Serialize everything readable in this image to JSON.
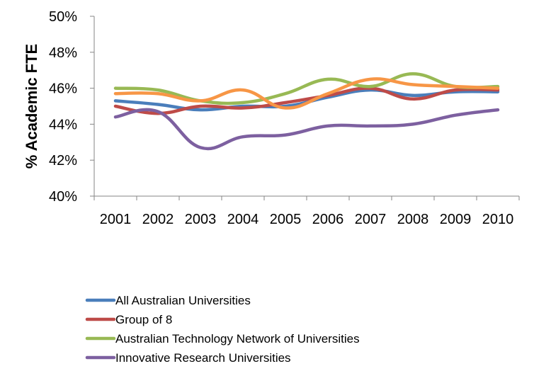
{
  "chart_data": {
    "type": "line",
    "title": "",
    "xlabel": "",
    "ylabel": "% Academic FTE",
    "x": [
      "2001",
      "2002",
      "2003",
      "2004",
      "2005",
      "2006",
      "2007",
      "2008",
      "2009",
      "2010"
    ],
    "ylim": [
      40,
      50
    ],
    "yticks": [
      "40%",
      "42%",
      "44%",
      "46%",
      "48%",
      "50%"
    ],
    "ytick_values": [
      40,
      42,
      44,
      46,
      48,
      50
    ],
    "grid": false,
    "legend_placement": "bottom",
    "series": [
      {
        "name": "All Australian Universities",
        "color": "#4a7ebb",
        "values": [
          45.3,
          45.1,
          44.8,
          45.0,
          45.0,
          45.5,
          45.9,
          45.6,
          45.8,
          45.8
        ]
      },
      {
        "name": "Group of 8",
        "color": "#be4b48",
        "values": [
          45.0,
          44.6,
          45.0,
          44.9,
          45.2,
          45.6,
          46.0,
          45.4,
          45.9,
          45.9
        ]
      },
      {
        "name": "Australian Technology Network of Universities",
        "color": "#98b954",
        "values": [
          46.0,
          45.9,
          45.3,
          45.2,
          45.7,
          46.5,
          46.1,
          46.8,
          46.1,
          46.1
        ]
      },
      {
        "name": "Innovative Research Universities",
        "color": "#7d60a0",
        "values": [
          44.4,
          44.7,
          42.7,
          43.3,
          43.4,
          43.9,
          43.9,
          44.0,
          44.5,
          44.8
        ]
      },
      {
        "name": "",
        "color": "#f79646",
        "values": [
          45.7,
          45.7,
          45.3,
          45.9,
          44.9,
          45.7,
          46.5,
          46.2,
          46.1,
          46.0
        ]
      }
    ]
  }
}
